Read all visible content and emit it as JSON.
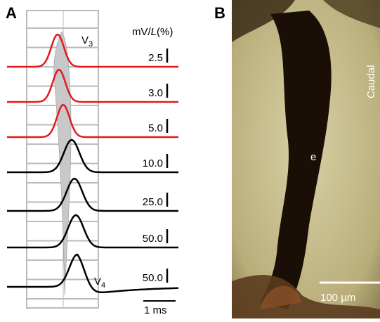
{
  "panel_a": {
    "label": "A",
    "v3": {
      "main": "V",
      "sub": "3"
    },
    "v4": {
      "main": "V",
      "sub": "4"
    },
    "scale_header": {
      "pre": "mV/",
      "italic": "L",
      "post": "(%)"
    },
    "scales": [
      "2.5",
      "3.0",
      "5.0",
      "10.0",
      "25.0",
      "50.0",
      "50.0"
    ],
    "time_bar": "1 ms"
  },
  "panel_b": {
    "label": "B",
    "orientation": "Caudal",
    "structure": "e",
    "scale_bar": "100 µm"
  }
}
